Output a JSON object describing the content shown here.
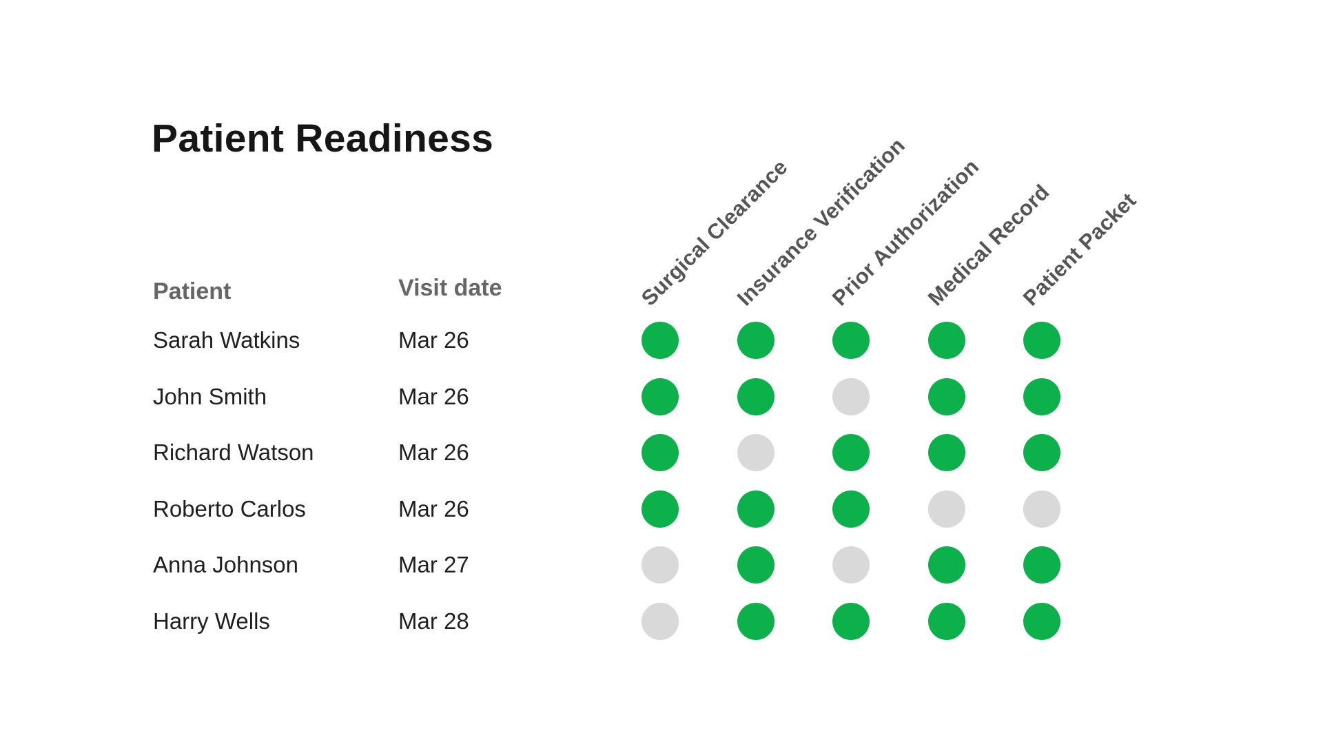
{
  "chart_data": {
    "type": "table",
    "title": "Patient Readiness",
    "row_label_headers": {
      "patient": "Patient",
      "visit_date": "Visit date"
    },
    "checklist_columns": [
      "Surgical Clearance",
      "Insurance Verification",
      "Prior Authorization",
      "Medical Record",
      "Patient Packet"
    ],
    "rows": [
      {
        "patient": "Sarah Watkins",
        "visit_date": "Mar 26",
        "completed": [
          true,
          true,
          true,
          true,
          true
        ]
      },
      {
        "patient": "John Smith",
        "visit_date": "Mar 26",
        "completed": [
          true,
          true,
          false,
          true,
          true
        ]
      },
      {
        "patient": "Richard Watson",
        "visit_date": "Mar 26",
        "completed": [
          true,
          false,
          true,
          true,
          true
        ]
      },
      {
        "patient": "Roberto Carlos",
        "visit_date": "Mar 26",
        "completed": [
          true,
          true,
          true,
          false,
          false
        ]
      },
      {
        "patient": "Anna Johnson",
        "visit_date": "Mar 27",
        "completed": [
          false,
          true,
          false,
          true,
          true
        ]
      },
      {
        "patient": "Harry Wells",
        "visit_date": "Mar 28",
        "completed": [
          false,
          true,
          true,
          true,
          true
        ]
      }
    ],
    "status_legend": {
      "green_dot": "complete",
      "gray_dot": "incomplete"
    }
  },
  "colors": {
    "complete": "#0db14b",
    "incomplete": "#d9d9d9",
    "title_text": "#161616",
    "column_header_text": "#666666"
  }
}
